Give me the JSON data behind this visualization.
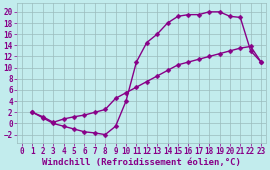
{
  "xlabel": "Windchill (Refroidissement éolien,°C)",
  "background_color": "#c2eced",
  "line_color": "#880088",
  "grid_color": "#9bbcbd",
  "xlim": [
    -0.5,
    23.5
  ],
  "ylim": [
    -3.5,
    21.5
  ],
  "xticks": [
    0,
    1,
    2,
    3,
    4,
    5,
    6,
    7,
    8,
    9,
    10,
    11,
    12,
    13,
    14,
    15,
    16,
    17,
    18,
    19,
    20,
    21,
    22,
    23
  ],
  "yticks": [
    -2,
    0,
    2,
    4,
    6,
    8,
    10,
    12,
    14,
    16,
    18,
    20
  ],
  "upper_x": [
    1,
    2,
    3,
    4,
    5,
    6,
    7,
    8,
    9,
    10,
    11,
    12,
    13,
    14,
    15,
    16,
    17,
    18,
    19,
    20,
    21,
    22,
    23
  ],
  "upper_y": [
    2.0,
    1.0,
    0.0,
    -0.5,
    -1.0,
    -1.5,
    -1.7,
    -2.0,
    -0.5,
    4.0,
    11.0,
    14.5,
    16.0,
    18.0,
    19.2,
    19.5,
    19.5,
    20.0,
    20.0,
    19.2,
    19.0,
    13.0,
    11.0
  ],
  "lower_x": [
    1,
    2,
    3,
    4,
    5,
    6,
    7,
    8,
    9,
    10,
    11,
    12,
    13,
    14,
    15,
    16,
    17,
    18,
    19,
    20,
    21,
    22,
    23
  ],
  "lower_y": [
    2.0,
    1.2,
    0.2,
    0.8,
    1.2,
    1.5,
    2.0,
    2.5,
    4.5,
    5.5,
    6.5,
    7.5,
    8.5,
    9.5,
    10.5,
    11.0,
    11.5,
    12.0,
    12.5,
    13.0,
    13.5,
    13.8,
    11.0
  ],
  "marker": "D",
  "markersize": 2.5,
  "linewidth": 1.0,
  "fontsize_xlabel": 6.5,
  "fontsize_ticks": 5.5
}
